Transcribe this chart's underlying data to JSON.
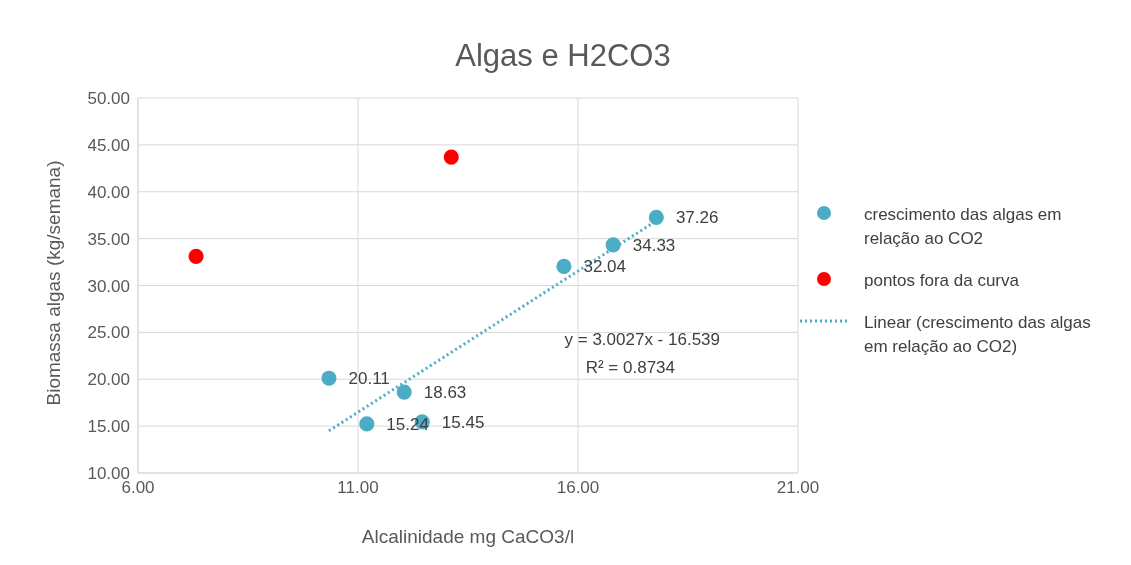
{
  "chart_data": {
    "type": "scatter",
    "title": "Algas e H2CO3",
    "xlabel": "Alcalinidade mg CaCO3/l",
    "ylabel": "Biomassa algas (kg/semana)",
    "xlim": [
      6,
      21
    ],
    "xticks": [
      {
        "value": 6,
        "label": "6.00"
      },
      {
        "value": 11,
        "label": "11.00"
      },
      {
        "value": 16,
        "label": "16.00"
      },
      {
        "value": 21,
        "label": "21.00"
      }
    ],
    "ylim": [
      10,
      50
    ],
    "yticks": [
      {
        "value": 10,
        "label": "10.00"
      },
      {
        "value": 15,
        "label": "15.00"
      },
      {
        "value": 20,
        "label": "20.00"
      },
      {
        "value": 25,
        "label": "25.00"
      },
      {
        "value": 30,
        "label": "30.00"
      },
      {
        "value": 35,
        "label": "35.00"
      },
      {
        "value": 40,
        "label": "40.00"
      },
      {
        "value": 45,
        "label": "45.00"
      },
      {
        "value": 50,
        "label": "50.00"
      }
    ],
    "grid": true,
    "legend": "right",
    "series": [
      {
        "name": "crescimento das algas em relação ao CO2",
        "color": "#4bacc6",
        "marker": "circle",
        "x": [
          10.34,
          11.2,
          12.05,
          12.46,
          15.68,
          16.8,
          17.78
        ],
        "values": [
          20.11,
          15.24,
          18.63,
          15.45,
          32.04,
          34.33,
          37.26
        ],
        "value_labels": [
          "20.11",
          "15.24",
          "18.63",
          "15.45",
          "32.04",
          "34.33",
          "37.26"
        ]
      },
      {
        "name": "pontos fora da curva",
        "color": "#ff0000",
        "marker": "circle",
        "x": [
          7.32,
          13.12
        ],
        "values": [
          33.1,
          43.7
        ]
      },
      {
        "name": "Linear (crescimento das algas em relação ao CO2)",
        "type": "line",
        "line_style": "dotted",
        "color": "#4bacc6",
        "x": [
          10.34,
          17.78
        ],
        "values": [
          14.5,
          36.9
        ]
      }
    ],
    "annotations": [
      "y = 3.0027x - 16.539",
      "R² = 0.8734"
    ]
  }
}
